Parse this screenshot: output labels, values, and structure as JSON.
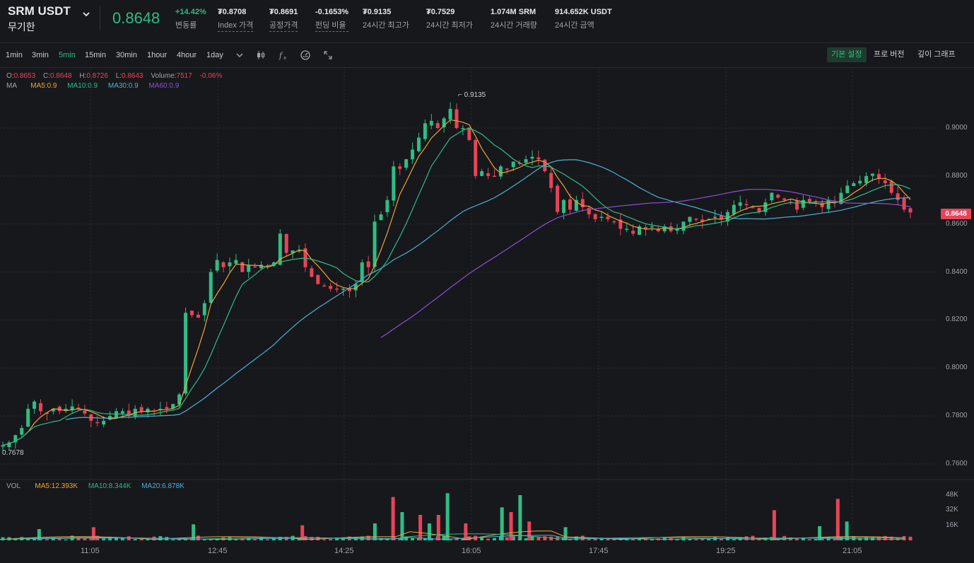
{
  "header": {
    "symbol": "SRM USDT",
    "subtitle": "무기한",
    "last_price": "0.8648",
    "stats": [
      {
        "value": "+14.42%",
        "label": "변동률"
      },
      {
        "value": "₮0.8708",
        "label": "Index 가격"
      },
      {
        "value": "₮0.8691",
        "label": "공정가격"
      },
      {
        "value": "-0.1653%",
        "label": "펀딩 비율"
      },
      {
        "value": "₮0.9135",
        "label": "24시간 최고가"
      },
      {
        "value": "₮0.7529",
        "label": "24시간 최저가"
      },
      {
        "value": "1.074M SRM",
        "label": "24시간 거래량"
      },
      {
        "value": "914.652K USDT",
        "label": "24시간 금액"
      }
    ]
  },
  "toolbar": {
    "timeframes": [
      "1min",
      "3min",
      "5min",
      "15min",
      "30min",
      "1hour",
      "4hour",
      "1day"
    ],
    "active_timeframe": "5min",
    "views": [
      "기본 설정",
      "프로 버전",
      "깊이 그래프"
    ],
    "active_view": "기본 설정"
  },
  "legend": {
    "o_label": "O:",
    "o_value": "0.8653",
    "c_label": "C:",
    "c_value": "0.8648",
    "h_label": "H:",
    "h_value": "0.8726",
    "l_label": "L:",
    "l_value": "0.8643",
    "vol_label": "Volume:",
    "vol_value": "7517",
    "change": "-0.06%",
    "ma_label": "MA",
    "ma5": "MA5:0.9",
    "ma10": "MA10:0.9",
    "ma30": "MA30:0.9",
    "ma60": "MA60:0.9"
  },
  "volume_legend": {
    "label": "VOL",
    "ma5": "MA5:12.393K",
    "ma10": "MA10:8.344K",
    "ma20": "MA20:6.878K"
  },
  "colors": {
    "up": "#2ebd85",
    "down": "#e94359",
    "ma5": "#f0a23c",
    "ma10": "#2ebd85",
    "ma30": "#4bb0d6",
    "ma60": "#8d4fd8",
    "grid": "#2a2c31"
  },
  "chart_data": {
    "type": "candlestick",
    "last_price": 0.8648,
    "high_marker": "0.9135",
    "low_marker": "0.7678",
    "price_axis": [
      "0.9000",
      "0.8800",
      "0.8600",
      "0.8400",
      "0.8200",
      "0.8000",
      "0.7800",
      "0.7600"
    ],
    "price_ticks": [
      0.9,
      0.88,
      0.86,
      0.84,
      0.82,
      0.8,
      0.78,
      0.76
    ],
    "volume_axis": [
      "48K",
      "32K",
      "16K"
    ],
    "volume_ticks": [
      48000,
      32000,
      16000
    ],
    "time_axis": [
      "11:05",
      "12:45",
      "14:25",
      "16:05",
      "17:45",
      "19:25",
      "21:05"
    ],
    "close_path": [
      0.7678,
      0.769,
      0.772,
      0.775,
      0.783,
      0.786,
      0.782,
      0.781,
      0.783,
      0.782,
      0.783,
      0.784,
      0.783,
      0.781,
      0.778,
      0.777,
      0.778,
      0.78,
      0.782,
      0.782,
      0.78,
      0.783,
      0.782,
      0.783,
      0.782,
      0.783,
      0.783,
      0.785,
      0.789,
      0.823,
      0.822,
      0.821,
      0.827,
      0.84,
      0.845,
      0.842,
      0.844,
      0.845,
      0.84,
      0.843,
      0.842,
      0.843,
      0.842,
      0.844,
      0.856,
      0.848,
      0.849,
      0.849,
      0.842,
      0.838,
      0.835,
      0.834,
      0.833,
      0.833,
      0.833,
      0.832,
      0.835,
      0.844,
      0.842,
      0.861,
      0.864,
      0.87,
      0.884,
      0.883,
      0.887,
      0.891,
      0.896,
      0.902,
      0.903,
      0.9,
      0.904,
      0.908,
      0.9,
      0.9,
      0.895,
      0.88,
      0.882,
      0.88,
      0.88,
      0.884,
      0.883,
      0.886,
      0.885,
      0.887,
      0.888,
      0.887,
      0.882,
      0.875,
      0.865,
      0.87,
      0.866,
      0.87,
      0.867,
      0.864,
      0.862,
      0.863,
      0.862,
      0.861,
      0.858,
      0.858,
      0.856,
      0.859,
      0.858,
      0.859,
      0.857,
      0.859,
      0.857,
      0.858,
      0.861,
      0.863,
      0.862,
      0.861,
      0.862,
      0.863,
      0.862,
      0.865,
      0.868,
      0.869,
      0.868,
      0.867,
      0.865,
      0.869,
      0.873,
      0.871,
      0.87,
      0.869,
      0.866,
      0.87,
      0.869,
      0.869,
      0.867,
      0.87,
      0.869,
      0.873,
      0.876,
      0.877,
      0.878,
      0.88,
      0.881,
      0.879,
      0.877,
      0.873,
      0.87,
      0.866,
      0.8648
    ],
    "volume_spikes_k": [
      [
        0.04,
        12
      ],
      [
        0.1,
        14
      ],
      [
        0.21,
        17
      ],
      [
        0.33,
        16
      ],
      [
        0.41,
        18
      ],
      [
        0.43,
        46
      ],
      [
        0.44,
        30
      ],
      [
        0.46,
        27
      ],
      [
        0.47,
        18
      ],
      [
        0.48,
        27
      ],
      [
        0.49,
        50
      ],
      [
        0.51,
        18
      ],
      [
        0.55,
        35
      ],
      [
        0.56,
        30
      ],
      [
        0.57,
        48
      ],
      [
        0.58,
        20
      ],
      [
        0.62,
        14
      ],
      [
        0.85,
        32
      ],
      [
        0.9,
        15
      ],
      [
        0.92,
        44
      ],
      [
        0.93,
        20
      ]
    ]
  }
}
